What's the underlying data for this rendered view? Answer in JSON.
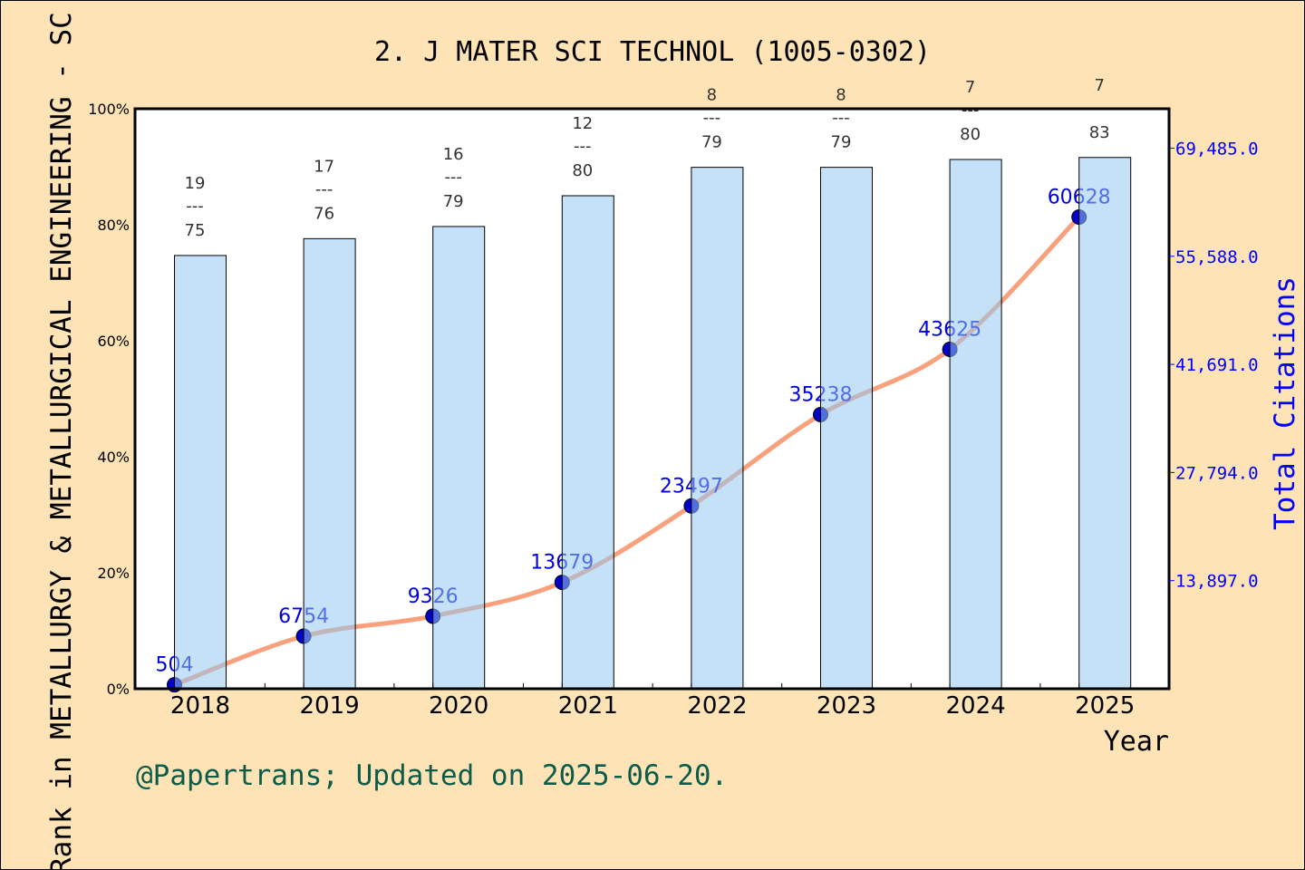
{
  "chart_data": {
    "type": "bar+line",
    "title": "2. J MATER SCI TECHNOL (1005-0302)",
    "xlabel": "Year",
    "ylabel": "Rank in METALLURGY & METALLURGICAL ENGINEERING - SC",
    "ylabel_right": "Total Citations",
    "categories": [
      "2018",
      "2019",
      "2020",
      "2021",
      "2022",
      "2023",
      "2024",
      "2025"
    ],
    "left_axis": {
      "ylim": [
        0,
        100
      ],
      "ticks": [
        "0%",
        "20%",
        "40%",
        "60%",
        "80%",
        "100%"
      ]
    },
    "right_axis": {
      "ylim": [
        0,
        74550
      ],
      "ticks": [
        "13,897.0",
        "27,794.0",
        "41,691.0",
        "55,588.0",
        "69,485.0"
      ],
      "tick_values": [
        13897,
        27794,
        41691,
        55588,
        69485
      ]
    },
    "series": [
      {
        "type": "bar",
        "axis": "left",
        "values": [
          74.7,
          77.6,
          79.7,
          85.0,
          89.9,
          89.9,
          91.25,
          91.6
        ],
        "rank": [
          "19",
          "17",
          "16",
          "12",
          "8",
          "8",
          "7",
          "7"
        ],
        "total": [
          "75",
          "76",
          "79",
          "80",
          "79",
          "79",
          "80",
          "83"
        ]
      },
      {
        "type": "line",
        "axis": "right",
        "values": [
          504,
          6754,
          9326,
          13679,
          23497,
          35238,
          43625,
          60628
        ],
        "labels": [
          "504",
          "6754",
          "9326",
          "13679",
          "23497",
          "35238",
          "43625",
          "60628"
        ]
      }
    ],
    "colors": {
      "bar": "#c5e0f7",
      "line": "#f9a07c",
      "marker": "#0000cc",
      "right_axis": "#0000ff",
      "background": "#fde3b6"
    },
    "grid": false
  },
  "footer": "@Papertrans; Updated on 2025-06-20.",
  "fraction_separator": "---"
}
